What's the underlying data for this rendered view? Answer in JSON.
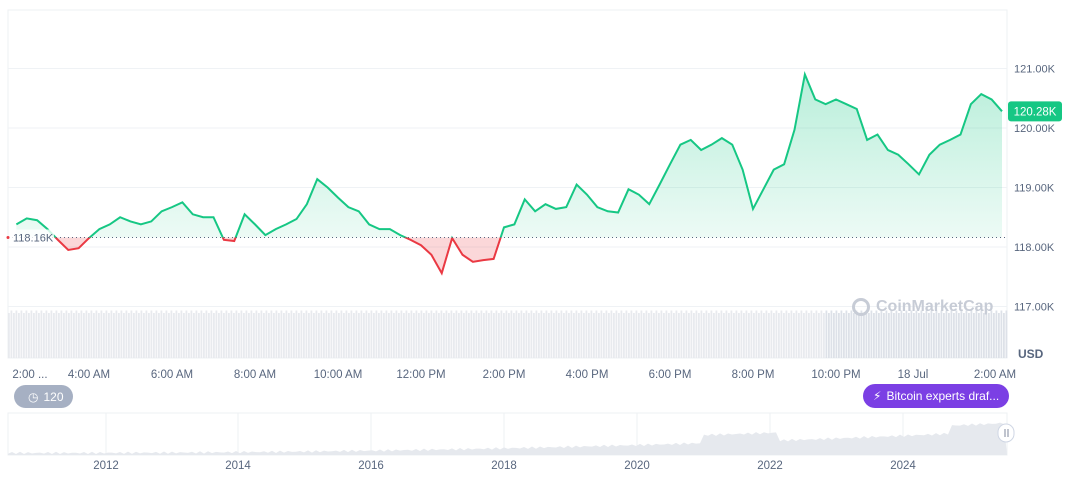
{
  "chart_data": {
    "type": "area",
    "currency": "USD",
    "yticks": [
      "117.00K",
      "118.00K",
      "119.00K",
      "120.00K",
      "121.00K"
    ],
    "ytick_values": [
      117000,
      118000,
      119000,
      120000,
      121000
    ],
    "ylim": [
      116850,
      121500
    ],
    "xticks": [
      "2:00 ...",
      "4:00 AM",
      "6:00 AM",
      "8:00 AM",
      "10:00 AM",
      "12:00 PM",
      "2:00 PM",
      "4:00 PM",
      "6:00 PM",
      "8:00 PM",
      "10:00 PM",
      "18 Jul",
      "2:00 AM"
    ],
    "baseline": 118160,
    "baseline_label": "118.16K",
    "current_label": "120.28K",
    "colors": {
      "up": "#16c784",
      "down": "#ea3943",
      "badge": "#16c784",
      "news": "#7b3fe4"
    },
    "x": [
      "02:15",
      "02:30",
      "02:45",
      "03:00",
      "03:15",
      "03:30",
      "03:45",
      "04:00",
      "04:15",
      "04:30",
      "04:45",
      "05:00",
      "05:15",
      "05:30",
      "05:45",
      "06:00",
      "06:15",
      "06:30",
      "06:45",
      "07:00",
      "07:15",
      "07:30",
      "07:45",
      "08:00",
      "08:15",
      "08:30",
      "08:45",
      "09:00",
      "09:15",
      "09:30",
      "09:45",
      "10:00",
      "10:15",
      "10:30",
      "10:45",
      "11:00",
      "11:15",
      "11:30",
      "11:45",
      "12:00",
      "12:15",
      "12:30",
      "12:45",
      "13:00",
      "13:15",
      "13:30",
      "13:45",
      "14:00",
      "14:15",
      "14:30",
      "14:45",
      "15:00",
      "15:15",
      "15:30",
      "15:45",
      "16:00",
      "16:15",
      "16:30",
      "16:45",
      "17:00",
      "17:15",
      "17:30",
      "17:45",
      "18:00",
      "18:15",
      "18:30",
      "18:45",
      "19:00",
      "19:15",
      "19:30",
      "19:45",
      "20:00",
      "20:15",
      "20:30",
      "20:45",
      "21:00",
      "21:15",
      "21:30",
      "21:45",
      "22:00",
      "22:15",
      "22:30",
      "22:45",
      "23:00",
      "23:15",
      "23:30",
      "23:45",
      "00:00",
      "00:15",
      "00:30",
      "00:45",
      "01:00",
      "01:15",
      "01:30",
      "01:45",
      "02:00"
    ],
    "values": [
      118380,
      118480,
      118450,
      118300,
      118120,
      117950,
      117980,
      118150,
      118300,
      118380,
      118500,
      118430,
      118380,
      118430,
      118600,
      118670,
      118750,
      118550,
      118500,
      118500,
      118120,
      118100,
      118550,
      118380,
      118200,
      118300,
      118380,
      118470,
      118720,
      119140,
      119000,
      118830,
      118670,
      118600,
      118380,
      118300,
      118300,
      118200,
      118120,
      118030,
      117870,
      117560,
      118150,
      117870,
      117750,
      117780,
      117800,
      118330,
      118380,
      118800,
      118600,
      118720,
      118640,
      118670,
      119050,
      118880,
      118670,
      118600,
      118580,
      118970,
      118880,
      118720,
      119050,
      119390,
      119720,
      119800,
      119630,
      119720,
      119830,
      119720,
      119300,
      118640,
      118970,
      119300,
      119390,
      119970,
      120900,
      120480,
      120400,
      120480,
      120400,
      120320,
      119800,
      119890,
      119630,
      119550,
      119390,
      119220,
      119550,
      119720,
      119800,
      119890,
      120400,
      120570,
      120480,
      120280
    ]
  },
  "navigator": {
    "years": [
      "2012",
      "2014",
      "2016",
      "2018",
      "2020",
      "2022",
      "2024"
    ]
  },
  "watermark": "CoinMarketCap",
  "history_badge": "120",
  "news_badge": "Bitcoin experts draf..."
}
